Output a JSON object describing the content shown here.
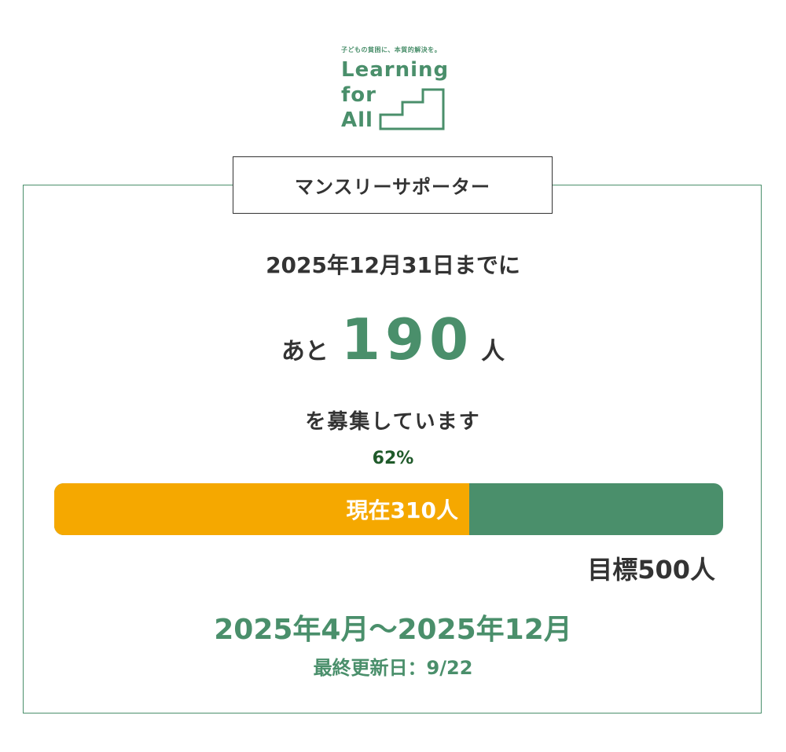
{
  "logo": {
    "tagline": "子どもの貧困に、本質的解決を。",
    "word1": "Learning",
    "word2": "for",
    "word3": "All"
  },
  "label": "マンスリーサポーター",
  "deadline_text": "2025年12月31日までに",
  "remaining": {
    "prefix": "あと",
    "count": "190",
    "suffix": "人"
  },
  "recruit_text": "を募集しています",
  "progress": {
    "percent_text": "62%",
    "fraction": 0.62,
    "current_text": "現在310人",
    "goal_text": "目標500人"
  },
  "period_text": "2025年4月～2025年12月",
  "updated_text": "最終更新日：9/22",
  "colors": {
    "green": "#4a8f6b",
    "orange": "#f5a800",
    "dark_green": "#1f5a2a"
  }
}
